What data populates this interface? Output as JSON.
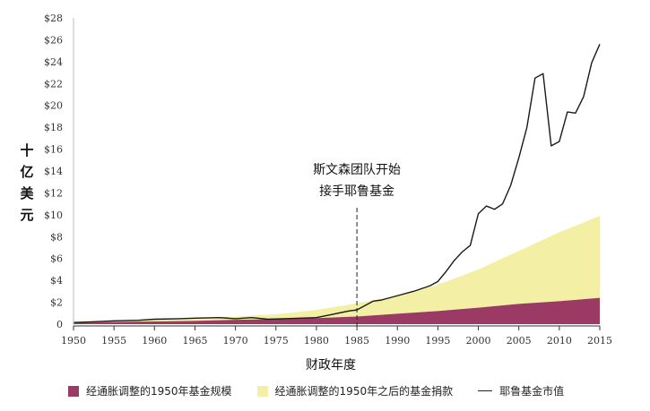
{
  "chart_data": {
    "type": "area",
    "ylabel": [
      "十",
      "亿",
      "美",
      "元"
    ],
    "xlabel": "财政年度",
    "annotation": [
      "斯文森团队开始",
      "接手耶鲁基金"
    ],
    "annotation_x": 1985,
    "xlim": [
      1950,
      2015
    ],
    "ylim": [
      0,
      28
    ],
    "x_ticks": [
      1950,
      1955,
      1960,
      1965,
      1970,
      1975,
      1980,
      1985,
      1990,
      1995,
      2000,
      2005,
      2010,
      2015
    ],
    "y_ticks": [
      {
        "value": 0,
        "label": "0"
      },
      {
        "value": 2,
        "label": "$2"
      },
      {
        "value": 4,
        "label": "$4"
      },
      {
        "value": 6,
        "label": "$6"
      },
      {
        "value": 8,
        "label": "$8"
      },
      {
        "value": 10,
        "label": "$10"
      },
      {
        "value": 12,
        "label": "$12"
      },
      {
        "value": 14,
        "label": "$14"
      },
      {
        "value": 16,
        "label": "$16"
      },
      {
        "value": 18,
        "label": "$18"
      },
      {
        "value": 20,
        "label": "$20"
      },
      {
        "value": 22,
        "label": "$22"
      },
      {
        "value": 24,
        "label": "$24"
      },
      {
        "value": 26,
        "label": "$26"
      },
      {
        "value": 28,
        "label": "$28"
      }
    ],
    "grid": false,
    "legend_position": "bottom",
    "series": [
      {
        "name": "经通胀调整的1950年基金规模",
        "kind": "area",
        "color": "#9b3a64",
        "x": [
          1950,
          1955,
          1960,
          1965,
          1970,
          1975,
          1980,
          1985,
          1990,
          1995,
          2000,
          2005,
          2010,
          2015
        ],
        "values": [
          0.1,
          0.2,
          0.25,
          0.3,
          0.4,
          0.45,
          0.55,
          0.7,
          0.95,
          1.2,
          1.5,
          1.85,
          2.1,
          2.4
        ]
      },
      {
        "name": "经通胀调整的1950年之后的基金捐款",
        "kind": "area",
        "color": "#f3f0a6",
        "x": [
          1950,
          1955,
          1960,
          1965,
          1970,
          1975,
          1980,
          1985,
          1990,
          1995,
          2000,
          2005,
          2010,
          2015
        ],
        "values": [
          0.25,
          0.35,
          0.45,
          0.55,
          0.7,
          0.9,
          1.3,
          1.9,
          2.6,
          3.6,
          5.0,
          6.7,
          8.4,
          9.9
        ]
      },
      {
        "name": "耶鲁基金市值",
        "kind": "line",
        "color": "#1a1a1a",
        "x": [
          1950,
          1952,
          1955,
          1958,
          1960,
          1963,
          1965,
          1968,
          1970,
          1972,
          1974,
          1976,
          1978,
          1980,
          1982,
          1984,
          1985,
          1986,
          1987,
          1988,
          1990,
          1992,
          1994,
          1995,
          1996,
          1997,
          1998,
          1999,
          2000,
          2001,
          2002,
          2003,
          2004,
          2005,
          2006,
          2007,
          2008,
          2009,
          2010,
          2011,
          2012,
          2013,
          2014,
          2015
        ],
        "values": [
          0.15,
          0.2,
          0.3,
          0.35,
          0.45,
          0.5,
          0.55,
          0.6,
          0.5,
          0.6,
          0.45,
          0.5,
          0.55,
          0.6,
          0.9,
          1.2,
          1.3,
          1.7,
          2.1,
          2.2,
          2.6,
          3.0,
          3.5,
          3.9,
          4.8,
          5.8,
          6.6,
          7.2,
          10.1,
          10.8,
          10.5,
          11.0,
          12.7,
          15.2,
          18.0,
          22.5,
          22.9,
          16.3,
          16.7,
          19.4,
          19.3,
          20.8,
          23.9,
          25.6
        ]
      }
    ]
  }
}
